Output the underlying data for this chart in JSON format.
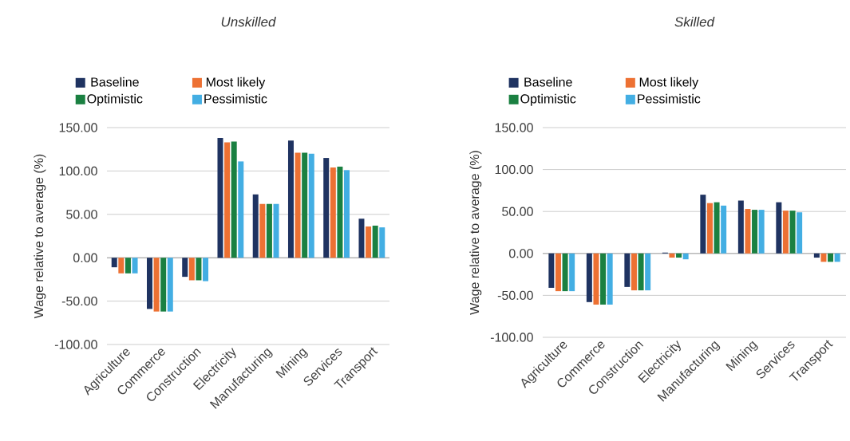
{
  "chart_data": [
    {
      "type": "bar",
      "title": "Unskilled",
      "ylabel": "Wage relative to average (%)",
      "categories": [
        "Agriculture",
        "Commerce",
        "Construction",
        "Electricity",
        "Manufacturing",
        "Mining",
        "Services",
        "Transport"
      ],
      "series": [
        {
          "name": "Baseline",
          "color": "#1f3361",
          "values": [
            -11,
            -59,
            -22,
            138,
            73,
            135,
            115,
            45
          ]
        },
        {
          "name": "Most likely",
          "color": "#ed7133",
          "values": [
            -18,
            -62,
            -26,
            133,
            62,
            121,
            104,
            36
          ]
        },
        {
          "name": "Optimistic",
          "color": "#1a8041",
          "values": [
            -18,
            -62,
            -26,
            134,
            62,
            121,
            105,
            37
          ]
        },
        {
          "name": "Pessimistic",
          "color": "#43aee3",
          "values": [
            -18,
            -62,
            -27,
            111,
            62,
            120,
            101,
            35
          ]
        }
      ],
      "ylim": [
        -100,
        150
      ],
      "yticks": [
        {
          "value": -100,
          "label": "-100.00"
        },
        {
          "value": -50,
          "label": "-50.00"
        },
        {
          "value": 0,
          "label": "0.00"
        },
        {
          "value": 50,
          "label": "50.00"
        },
        {
          "value": 100,
          "label": "100.00"
        },
        {
          "value": 150,
          "label": "150.00"
        }
      ],
      "grid": "y",
      "legend": "top"
    },
    {
      "type": "bar",
      "title": "Skilled",
      "ylabel": "Wage relative to average (%)",
      "categories": [
        "Agriculture",
        "Commerce",
        "Construction",
        "Electricity",
        "Manufacturing",
        "Mining",
        "Services",
        "Transport"
      ],
      "series": [
        {
          "name": "Baseline",
          "color": "#1f3361",
          "values": [
            -41,
            -58,
            -40,
            1,
            70,
            63,
            61,
            -5
          ]
        },
        {
          "name": "Most likely",
          "color": "#ed7133",
          "values": [
            -45,
            -61,
            -44,
            -5,
            60,
            53,
            51,
            -10
          ]
        },
        {
          "name": "Optimistic",
          "color": "#1a8041",
          "values": [
            -45,
            -61,
            -44,
            -5,
            61,
            52,
            51,
            -10
          ]
        },
        {
          "name": "Pessimistic",
          "color": "#43aee3",
          "values": [
            -45,
            -61,
            -44,
            -7,
            57,
            52,
            49,
            -10
          ]
        }
      ],
      "ylim": [
        -100,
        150
      ],
      "yticks": [
        {
          "value": -100,
          "label": "-100.00"
        },
        {
          "value": -50,
          "label": "-50.00"
        },
        {
          "value": 0,
          "label": "0.00"
        },
        {
          "value": 50,
          "label": "50.00"
        },
        {
          "value": 100,
          "label": "100.00"
        },
        {
          "value": 150,
          "label": "150.00"
        }
      ],
      "grid": "y",
      "legend": "top"
    }
  ]
}
